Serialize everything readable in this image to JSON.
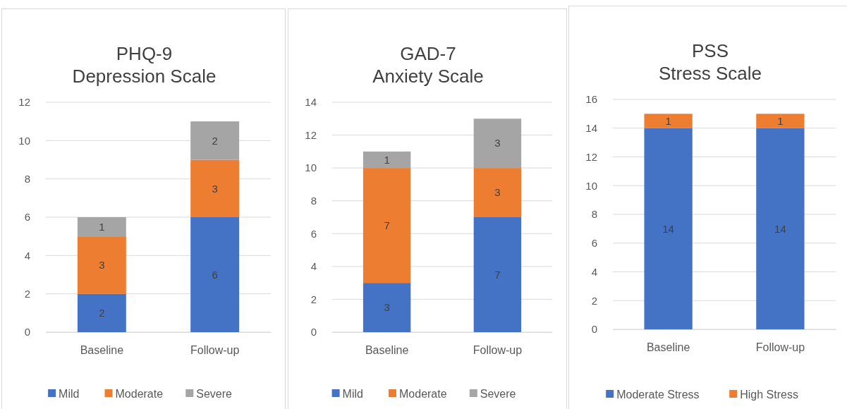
{
  "chart_data": [
    {
      "type": "bar",
      "title": "PHQ-9",
      "subtitle": "Depression Scale",
      "categories": [
        "Baseline",
        "Follow-up"
      ],
      "stacked": true,
      "data_labels": true,
      "grid": "y",
      "legend": "bottom",
      "ylim": [
        0,
        12
      ],
      "yticks": [
        0,
        2,
        4,
        6,
        8,
        10,
        12
      ],
      "series": [
        {
          "name": "Mild",
          "color": "#4472c4",
          "values": [
            2,
            6
          ]
        },
        {
          "name": "Moderate",
          "color": "#ed7d31",
          "values": [
            3,
            3
          ]
        },
        {
          "name": "Severe",
          "color": "#a5a5a5",
          "values": [
            1,
            2
          ]
        }
      ]
    },
    {
      "type": "bar",
      "title": "GAD-7",
      "subtitle": "Anxiety Scale",
      "categories": [
        "Baseline",
        "Follow-up"
      ],
      "stacked": true,
      "data_labels": true,
      "grid": "y",
      "legend": "bottom",
      "ylim": [
        0,
        14
      ],
      "yticks": [
        0,
        2,
        4,
        6,
        8,
        10,
        12,
        14
      ],
      "series": [
        {
          "name": "Mild",
          "color": "#4472c4",
          "values": [
            3,
            7
          ]
        },
        {
          "name": "Moderate",
          "color": "#ed7d31",
          "values": [
            7,
            3
          ]
        },
        {
          "name": "Severe",
          "color": "#a5a5a5",
          "values": [
            1,
            3
          ]
        }
      ]
    },
    {
      "type": "bar",
      "title": "PSS",
      "subtitle": "Stress Scale",
      "categories": [
        "Baseline",
        "Follow-up"
      ],
      "stacked": true,
      "data_labels": true,
      "grid": "y",
      "legend": "bottom",
      "ylim": [
        0,
        16
      ],
      "yticks": [
        0,
        2,
        4,
        6,
        8,
        10,
        12,
        14,
        16
      ],
      "series": [
        {
          "name": "Moderate Stress",
          "color": "#4472c4",
          "values": [
            14,
            14
          ]
        },
        {
          "name": "High Stress",
          "color": "#ed7d31",
          "values": [
            1,
            1
          ]
        }
      ]
    }
  ]
}
